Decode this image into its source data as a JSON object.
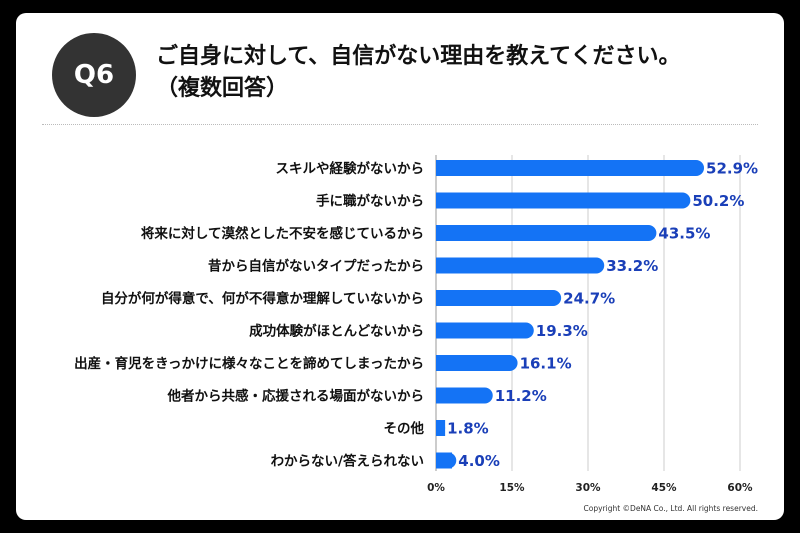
{
  "header": {
    "badge": "Q6",
    "question_line1": "ご自身に対して、自信がない理由を教えてください。",
    "question_line2": "（複数回答）"
  },
  "footer": {
    "copyright": "Copyright ©DeNA Co., Ltd. All rights reserved."
  },
  "colors": {
    "bar": "#1473f5",
    "value_label": "#1a3fb8",
    "grid": "#cccccc"
  },
  "chart_data": {
    "type": "bar",
    "orientation": "horizontal",
    "categories": [
      "スキルや経験がないから",
      "手に職がないから",
      "将来に対して漠然とした不安を感じているから",
      "昔から自信がないタイプだったから",
      "自分が何が得意で、何が不得意か理解していないから",
      "成功体験がほとんどないから",
      "出産・育児をきっかけに様々なことを諦めてしまったから",
      "他者から共感・応援される場面がないから",
      "その他",
      "わからない/答えられない"
    ],
    "values": [
      52.9,
      50.2,
      43.5,
      33.2,
      24.7,
      19.3,
      16.1,
      11.2,
      1.8,
      4.0
    ],
    "value_labels": [
      "52.9%",
      "50.2%",
      "43.5%",
      "33.2%",
      "24.7%",
      "19.3%",
      "16.1%",
      "11.2%",
      "1.8%",
      "4.0%"
    ],
    "xlim": [
      0,
      60
    ],
    "xticks": [
      0,
      15,
      30,
      45,
      60
    ],
    "xtick_labels": [
      "0%",
      "15%",
      "30%",
      "45%",
      "60%"
    ],
    "grid": true
  }
}
